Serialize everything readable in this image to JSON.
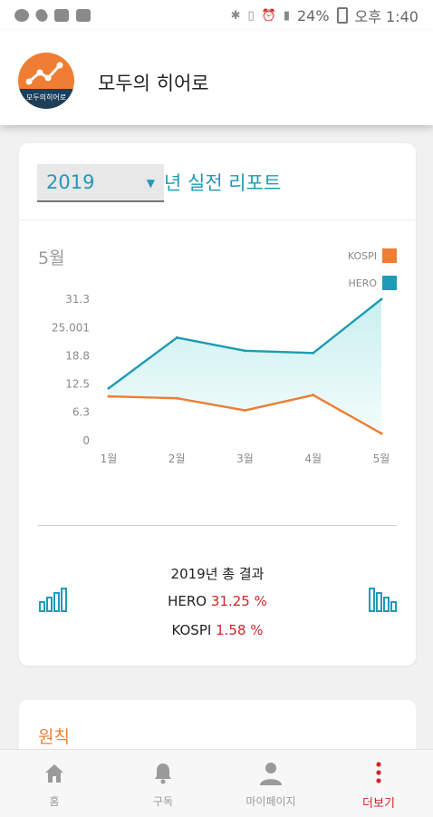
{
  "status_bar": {
    "battery": "24%",
    "time": "오후 1:40"
  },
  "app": {
    "title": "모두의 히어로",
    "logo_text": "모두의히어로"
  },
  "report": {
    "year": "2019",
    "title_suffix": "년 실전 리포트",
    "month": "5월",
    "legend": [
      {
        "name": "KOSPI",
        "color": "#ef7d33"
      },
      {
        "name": "HERO",
        "color": "#1f9bb5"
      }
    ]
  },
  "chart_data": {
    "type": "area",
    "categories": [
      "1월",
      "2월",
      "3월",
      "4월",
      "5월"
    ],
    "y_ticks": [
      "31.3",
      "25.001",
      "18.8",
      "12.5",
      "6.3",
      "0"
    ],
    "ylim": [
      0,
      31.3
    ],
    "series": [
      {
        "name": "HERO",
        "values": [
          11.6,
          22.8,
          19.9,
          19.4,
          31.3
        ],
        "color": "#1f9bb5",
        "fill": true
      },
      {
        "name": "KOSPI",
        "values": [
          9.8,
          9.4,
          6.7,
          10.1,
          1.6
        ],
        "color": "#ef7d33",
        "fill": false
      }
    ]
  },
  "summary": {
    "heading": "2019년 총 결과",
    "hero_label": "HERO",
    "hero_value": "31.25 %",
    "kospi_label": "KOSPI",
    "kospi_value": "1.58 %"
  },
  "principle": {
    "title": "원칙"
  },
  "nav": {
    "home": "홈",
    "subscribe": "구독",
    "mypage": "마이페이지",
    "more": "더보기"
  },
  "colors": {
    "accent": "#1f9bb5",
    "orange": "#ef7d33",
    "active": "#d0262c"
  }
}
